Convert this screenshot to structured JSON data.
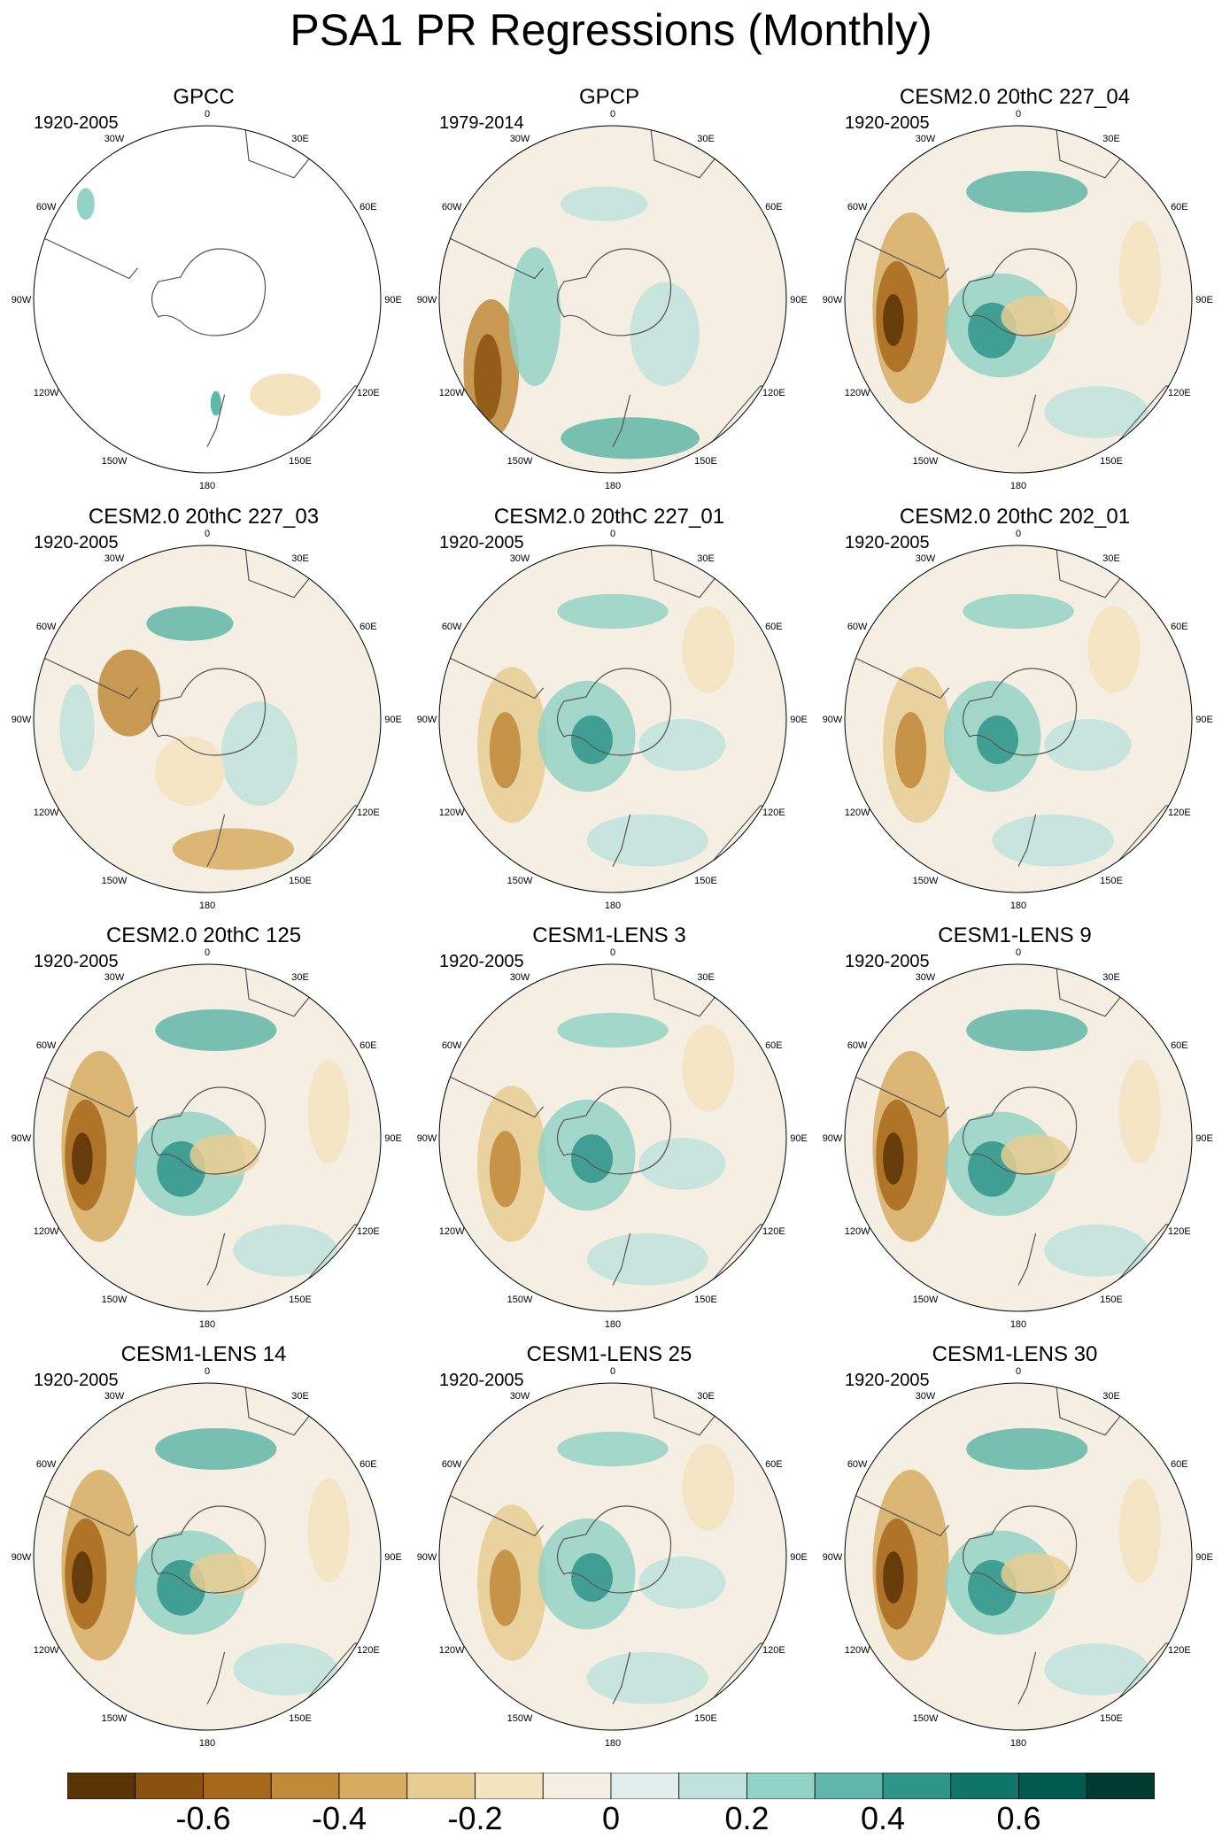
{
  "title": "PSA1 PR Regressions (Monthly)",
  "panels": [
    {
      "title": "GPCC",
      "years": "1920-2005"
    },
    {
      "title": "GPCP",
      "years": "1979-2014"
    },
    {
      "title": "CESM2.0 20thC 227_04",
      "years": "1920-2005"
    },
    {
      "title": "CESM2.0 20thC 227_03",
      "years": "1920-2005"
    },
    {
      "title": "CESM2.0 20thC 227_01",
      "years": "1920-2005"
    },
    {
      "title": "CESM2.0 20thC 202_01",
      "years": "1920-2005"
    },
    {
      "title": "CESM2.0 20thC 125",
      "years": "1920-2005"
    },
    {
      "title": "CESM1-LENS 3",
      "years": "1920-2005"
    },
    {
      "title": "CESM1-LENS 9",
      "years": "1920-2005"
    },
    {
      "title": "CESM1-LENS 14",
      "years": "1920-2005"
    },
    {
      "title": "CESM1-LENS 25",
      "years": "1920-2005"
    },
    {
      "title": "CESM1-LENS 30",
      "years": "1920-2005"
    }
  ],
  "map_labels": {
    "top": "0",
    "bottom": "180",
    "upper_left": "30W",
    "upper_right": "30E",
    "mid_upper_left": "60W",
    "mid_upper_right": "60E",
    "left": "90W",
    "right": "90E",
    "mid_lower_left": "120W",
    "mid_lower_right": "120E",
    "lower_left": "150W",
    "lower_right": "150E"
  },
  "colorbar": {
    "colors": [
      "#5a3306",
      "#8a520f",
      "#a8681b",
      "#c08a38",
      "#d6ac62",
      "#e8cd92",
      "#f3e3be",
      "#f4efe2",
      "#e0efec",
      "#bfe3dc",
      "#93d2c6",
      "#60b6a8",
      "#2f9588",
      "#11766a",
      "#005a4e",
      "#003a31"
    ],
    "ticks": [
      "-0.6",
      "-0.4",
      "-0.2",
      "0",
      "0.2",
      "0.4",
      "0.6"
    ]
  },
  "colors": {
    "ocean_background": "#f4efe2",
    "coast": "#555555"
  }
}
